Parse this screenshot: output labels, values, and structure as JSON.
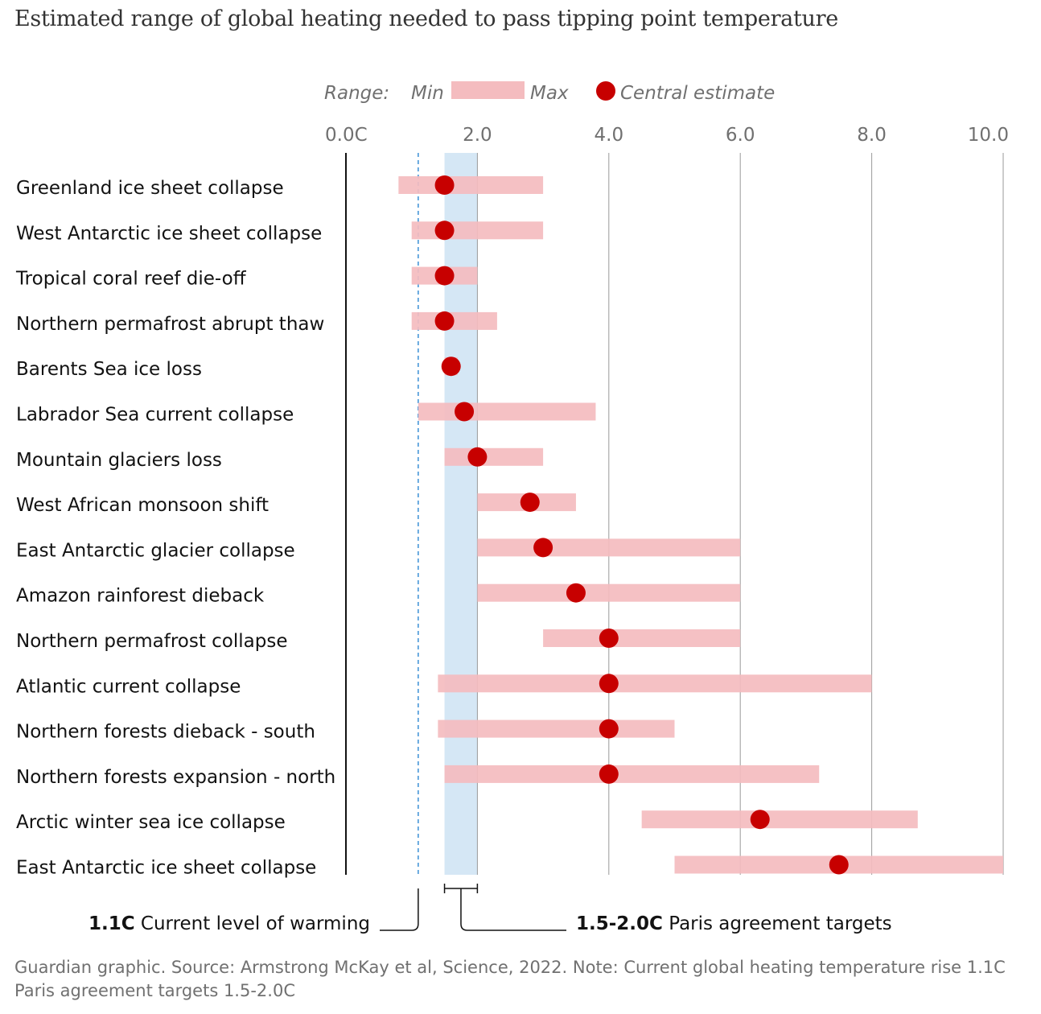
{
  "chart_data": {
    "type": "range-dot",
    "title": "Estimated range of global heating needed to pass tipping point temperature",
    "legend": {
      "range_label": "Range:",
      "min_label": "Min",
      "max_label": "Max",
      "central_label": "Central estimate"
    },
    "x_ticks": [
      "0.0C",
      "2.0",
      "4.0",
      "6.0",
      "8.0",
      "10.0"
    ],
    "xlim": [
      0,
      10
    ],
    "gridlines": [
      2,
      4,
      6,
      8,
      10
    ],
    "rows": [
      {
        "label": "Greenland ice sheet collapse",
        "min": 0.8,
        "max": 3.0,
        "central": 1.5
      },
      {
        "label": "West Antarctic ice sheet collapse",
        "min": 1.0,
        "max": 3.0,
        "central": 1.5
      },
      {
        "label": "Tropical coral reef die-off",
        "min": 1.0,
        "max": 2.0,
        "central": 1.5
      },
      {
        "label": "Northern permafrost abrupt thaw",
        "min": 1.0,
        "max": 2.3,
        "central": 1.5
      },
      {
        "label": "Barents Sea ice loss",
        "min": 1.5,
        "max": 1.7,
        "central": 1.6
      },
      {
        "label": "Labrador Sea current collapse",
        "min": 1.1,
        "max": 3.8,
        "central": 1.8
      },
      {
        "label": "Mountain glaciers loss",
        "min": 1.5,
        "max": 3.0,
        "central": 2.0
      },
      {
        "label": "West African monsoon shift",
        "min": 2.0,
        "max": 3.5,
        "central": 2.8
      },
      {
        "label": "East Antarctic glacier collapse",
        "min": 2.0,
        "max": 6.0,
        "central": 3.0
      },
      {
        "label": "Amazon rainforest dieback",
        "min": 2.0,
        "max": 6.0,
        "central": 3.5
      },
      {
        "label": "Northern permafrost collapse",
        "min": 3.0,
        "max": 6.0,
        "central": 4.0
      },
      {
        "label": "Atlantic current collapse",
        "min": 1.4,
        "max": 8.0,
        "central": 4.0
      },
      {
        "label": "Northern forests dieback - south",
        "min": 1.4,
        "max": 5.0,
        "central": 4.0
      },
      {
        "label": "Northern forests expansion - north",
        "min": 1.5,
        "max": 7.2,
        "central": 4.0
      },
      {
        "label": "Arctic winter sea ice collapse",
        "min": 4.5,
        "max": 8.7,
        "central": 6.3
      },
      {
        "label": "East Antarctic ice sheet collapse",
        "min": 5.0,
        "max": 10.0,
        "central": 7.5
      }
    ],
    "current_warming": {
      "value": 1.1,
      "bold": "1.1C",
      "text": "Current level of warming"
    },
    "paris_targets": {
      "min": 1.5,
      "max": 2.0,
      "bold": "1.5-2.0C",
      "text": "Paris agreement targets"
    },
    "colors": {
      "range_bar": "#f4bcbf",
      "central_dot": "#c70000",
      "paris_band": "#d5e7f5",
      "current_line": "#3a8fd6",
      "gridline": "#999999",
      "axis_line": "#121212",
      "muted_text": "#707070"
    }
  },
  "source": {
    "line1": "Guardian graphic. Source: Armstrong McKay et al, Science, 2022. Note: Current global heating temperature rise 1.1C",
    "line2": "Paris agreement targets 1.5-2.0C"
  }
}
